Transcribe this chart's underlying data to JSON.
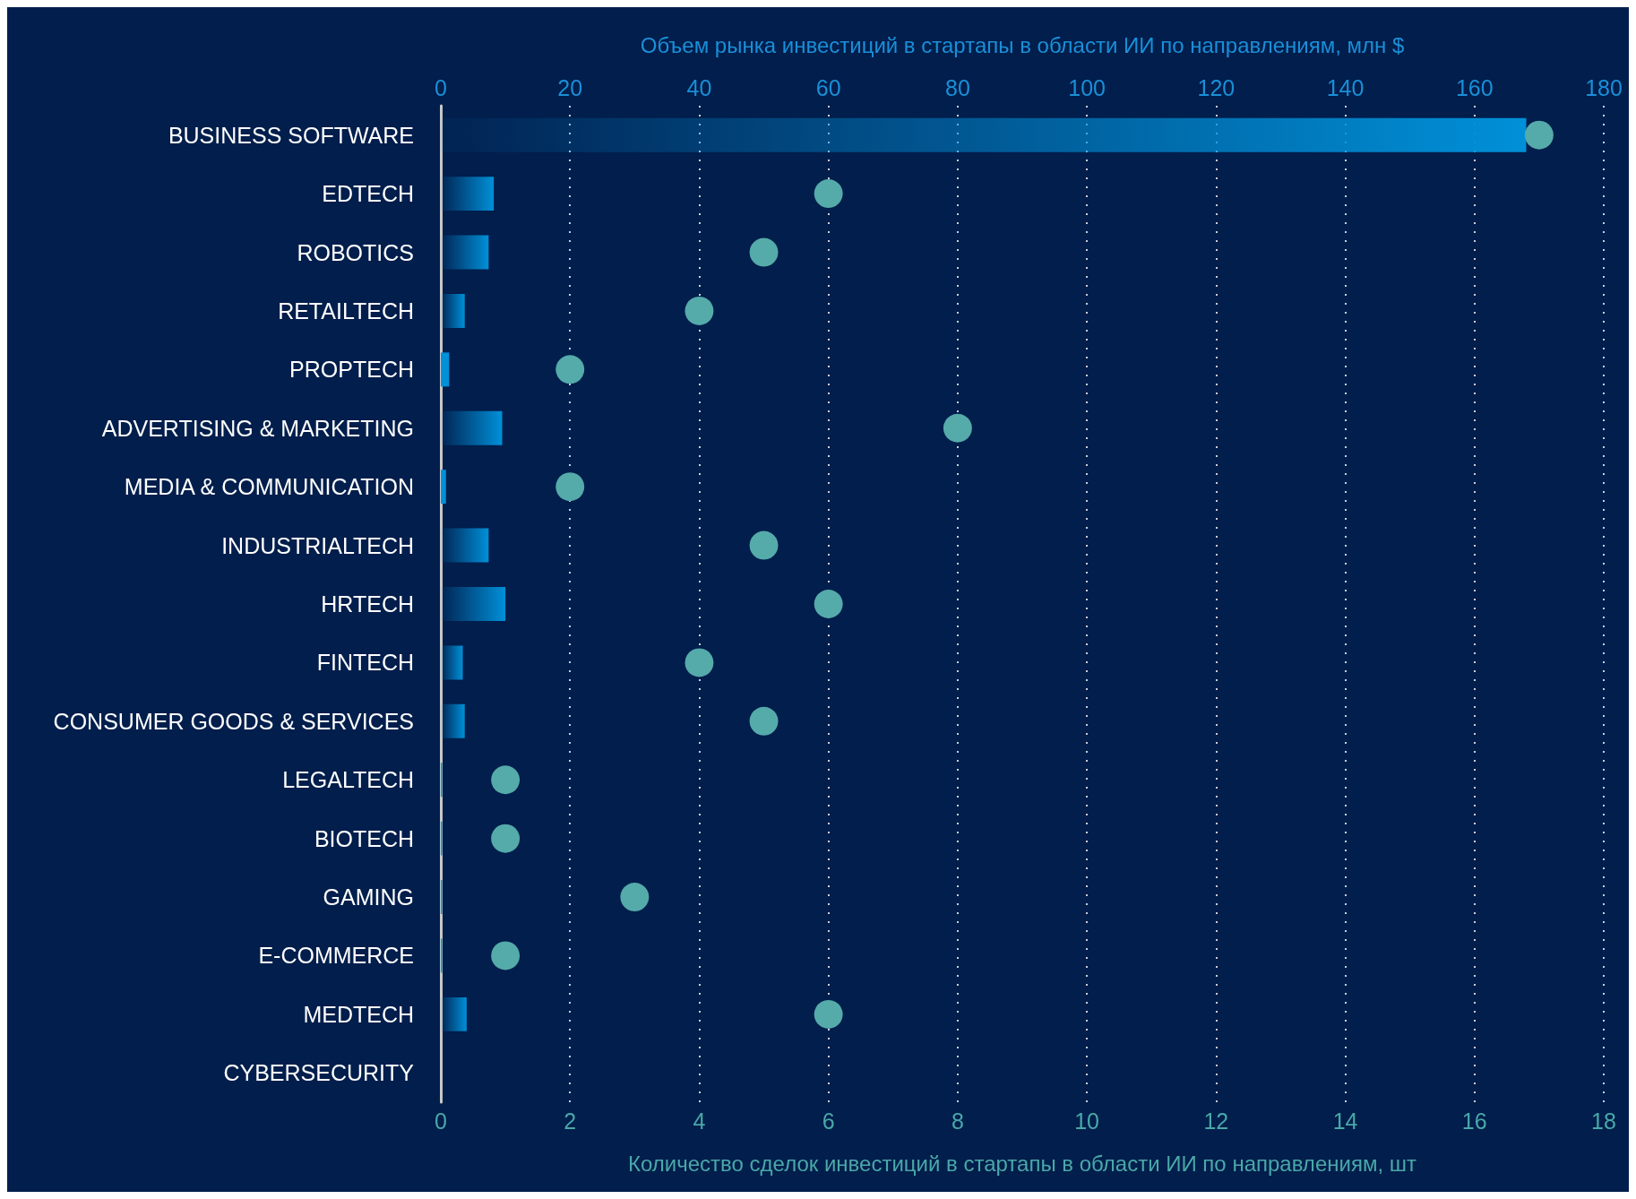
{
  "chart_data": {
    "type": "bar",
    "orientation": "horizontal",
    "categories": [
      "BUSINESS SOFTWARE",
      "EDTECH",
      "ROBOTICS",
      "RETAILTECH",
      "PROPTECH",
      "ADVERTISING & MARKETING",
      "MEDIA & COMMUNICATION",
      "INDUSTRIALTECH",
      "HRTECH",
      "FINTECH",
      "CONSUMER GOODS & SERVICES",
      "LEGALTECH",
      "BIOTECH",
      "GAMING",
      "E-COMMERCE",
      "MEDTECH",
      "CYBERSECURITY"
    ],
    "series": [
      {
        "axis": "x2",
        "color": "#0090d8",
        "values": [
          168,
          8.2,
          7.4,
          3.7,
          1.3,
          9.5,
          0.8,
          7.4,
          10,
          3.4,
          3.7,
          0.2,
          0.2,
          0.2,
          0.2,
          4,
          0
        ]
      },
      {
        "type": "scatter",
        "color": "#55aaaa",
        "values": [
          17,
          6,
          5,
          4,
          2,
          8,
          2,
          5,
          6,
          4,
          5,
          1,
          1,
          3,
          1,
          6,
          null
        ]
      }
    ],
    "x2label": "Объем рынка инвестиций в стартапы в области ИИ по направлениям, млн $",
    "x2lim": [
      0,
      180
    ],
    "x2ticks": [
      0,
      20,
      40,
      60,
      80,
      100,
      120,
      140,
      160,
      180
    ],
    "xlabel": "Количество сделок инвестиций в стартапы в области ИИ по направлениям, шт",
    "xlim": [
      0,
      18
    ],
    "xticks": [
      0,
      2,
      4,
      6,
      8,
      10,
      12,
      14,
      16,
      18
    ],
    "grid": "x",
    "marker": "circle"
  }
}
